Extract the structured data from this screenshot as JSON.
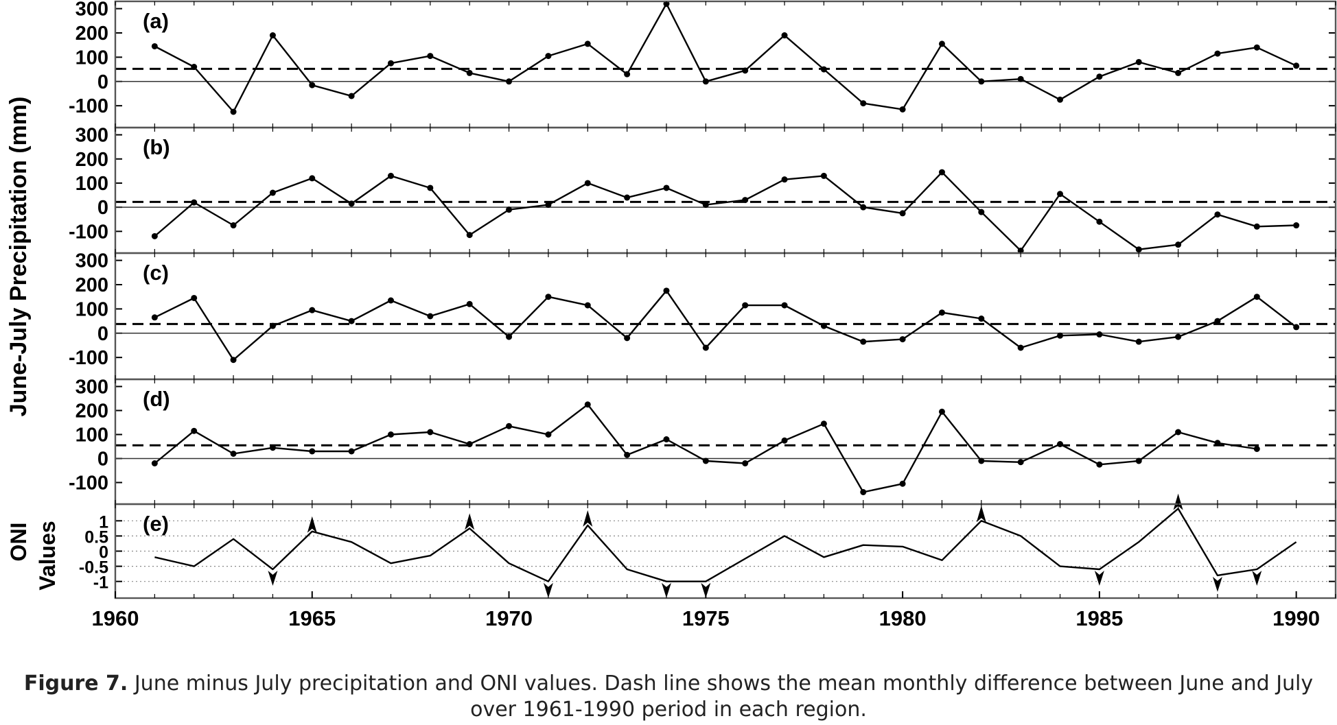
{
  "chart_data": [
    {
      "type": "line",
      "panel": "(a)",
      "x": [
        1961,
        1962,
        1963,
        1964,
        1965,
        1966,
        1967,
        1968,
        1969,
        1970,
        1971,
        1972,
        1973,
        1974,
        1975,
        1976,
        1977,
        1978,
        1979,
        1980,
        1981,
        1982,
        1983,
        1984,
        1985,
        1986,
        1987,
        1988,
        1989,
        1990
      ],
      "values": [
        145,
        60,
        -125,
        190,
        -15,
        -60,
        75,
        105,
        35,
        0,
        105,
        155,
        30,
        320,
        0,
        45,
        190,
        50,
        -90,
        -115,
        155,
        0,
        10,
        -75,
        20,
        80,
        35,
        115,
        140,
        65
      ],
      "mean": 52,
      "ylim": [
        -190,
        330
      ],
      "yticks": [
        -100,
        0,
        100,
        200,
        300
      ],
      "ytick_labels": [
        "-100",
        "0",
        "100",
        "200",
        "300"
      ]
    },
    {
      "type": "line",
      "panel": "(b)",
      "x": [
        1961,
        1962,
        1963,
        1964,
        1965,
        1966,
        1967,
        1968,
        1969,
        1970,
        1971,
        1972,
        1973,
        1974,
        1975,
        1976,
        1977,
        1978,
        1979,
        1980,
        1981,
        1982,
        1983,
        1984,
        1985,
        1986,
        1987,
        1988,
        1989,
        1990
      ],
      "values": [
        -120,
        20,
        -75,
        60,
        120,
        15,
        130,
        80,
        -115,
        -10,
        10,
        100,
        40,
        80,
        10,
        30,
        115,
        130,
        0,
        -25,
        145,
        -20,
        -180,
        55,
        -60,
        -175,
        -155,
        -30,
        -80,
        -75
      ],
      "mean": 22,
      "ylim": [
        -190,
        330
      ],
      "yticks": [
        -100,
        0,
        100,
        200,
        300
      ],
      "ytick_labels": [
        "-100",
        "0",
        "100",
        "200",
        "300"
      ]
    },
    {
      "type": "line",
      "panel": "(c)",
      "x": [
        1961,
        1962,
        1963,
        1964,
        1965,
        1966,
        1967,
        1968,
        1969,
        1970,
        1971,
        1972,
        1973,
        1974,
        1975,
        1976,
        1977,
        1978,
        1979,
        1980,
        1981,
        1982,
        1983,
        1984,
        1985,
        1986,
        1987,
        1988,
        1989,
        1990
      ],
      "values": [
        65,
        145,
        -110,
        30,
        95,
        50,
        135,
        70,
        120,
        -15,
        150,
        115,
        -20,
        175,
        -60,
        115,
        115,
        30,
        -35,
        -25,
        85,
        60,
        -60,
        -10,
        -5,
        -35,
        -15,
        50,
        150,
        25
      ],
      "mean": 38,
      "ylim": [
        -190,
        330
      ],
      "yticks": [
        -100,
        0,
        100,
        200,
        300
      ],
      "ytick_labels": [
        "-100",
        "0",
        "100",
        "200",
        "300"
      ]
    },
    {
      "type": "line",
      "panel": "(d)",
      "x": [
        1961,
        1962,
        1963,
        1964,
        1965,
        1966,
        1967,
        1968,
        1969,
        1970,
        1971,
        1972,
        1973,
        1974,
        1975,
        1976,
        1977,
        1978,
        1979,
        1980,
        1981,
        1982,
        1983,
        1984,
        1985,
        1986,
        1987,
        1988,
        1989,
        1990
      ],
      "values": [
        -20,
        115,
        20,
        45,
        30,
        30,
        100,
        110,
        60,
        135,
        100,
        225,
        15,
        80,
        -10,
        -20,
        75,
        145,
        -140,
        -105,
        195,
        -10,
        -15,
        60,
        -25,
        -10,
        110,
        65,
        40,
        null
      ],
      "mean": 55,
      "ylim": [
        -190,
        330
      ],
      "yticks": [
        -100,
        0,
        100,
        200,
        300
      ],
      "ytick_labels": [
        "-100",
        "0",
        "100",
        "200",
        "300"
      ]
    },
    {
      "type": "line",
      "panel": "(e)",
      "x": [
        1961,
        1962,
        1963,
        1964,
        1965,
        1966,
        1967,
        1968,
        1969,
        1970,
        1971,
        1972,
        1973,
        1974,
        1975,
        1976,
        1977,
        1978,
        1979,
        1980,
        1981,
        1982,
        1983,
        1984,
        1985,
        1986,
        1987,
        1988,
        1989,
        1990
      ],
      "values": [
        -0.2,
        -0.5,
        0.4,
        -0.6,
        0.65,
        0.3,
        -0.4,
        -0.15,
        0.75,
        -0.4,
        -1.0,
        0.85,
        -0.6,
        -1.0,
        -1.0,
        -0.25,
        0.5,
        -0.2,
        0.2,
        0.15,
        -0.3,
        1.0,
        0.5,
        -0.5,
        -0.6,
        0.3,
        1.4,
        -0.8,
        -0.6,
        0.3
      ],
      "ylim": [
        -1.55,
        1.55
      ],
      "yticks": [
        -1,
        -0.5,
        0,
        0.5,
        1
      ],
      "ytick_labels": [
        "-1",
        "-0.5",
        "0",
        "0.5",
        "1"
      ],
      "up_arrow_years": [
        1965,
        1969,
        1972,
        1982,
        1987
      ],
      "down_arrow_years": [
        1964,
        1971,
        1974,
        1975,
        1985,
        1988,
        1989
      ]
    }
  ],
  "axes": {
    "ylabel_top": "June-July Precipitation (mm)",
    "ylabel_bottom": [
      "ONI",
      "Values"
    ],
    "x_range": [
      1960,
      1991
    ],
    "x_ticks": [
      1960,
      1965,
      1970,
      1975,
      1980,
      1985,
      1990
    ],
    "x_tick_labels": [
      "1960",
      "1965",
      "1970",
      "1975",
      "1980",
      "1985",
      "1990"
    ]
  },
  "colors": {
    "line": "#000000",
    "frame": "#555555",
    "grid": "#888888"
  },
  "caption": {
    "label": "Figure 7.",
    "text": " June minus July precipitation and ONI values. Dash line shows the mean monthly difference between June and July over 1961-1990 period in each region."
  }
}
